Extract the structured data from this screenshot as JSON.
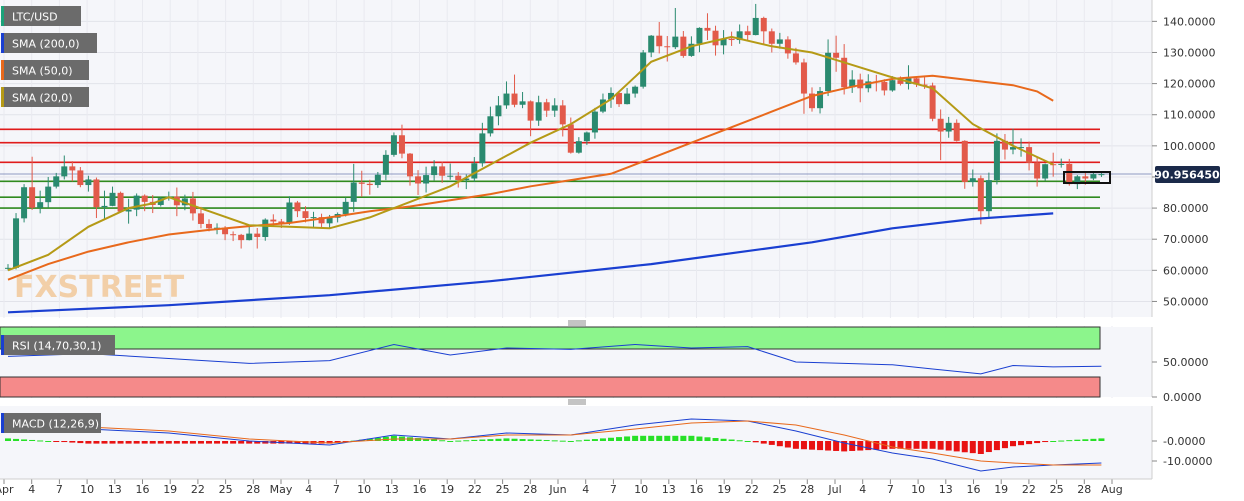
{
  "chart_data": {
    "type": "candlestick",
    "symbol": "LTC/USD",
    "legend": [
      "SMA (200,0)",
      "SMA (50,0)",
      "SMA (20,0)"
    ],
    "last_price": "90.956450",
    "watermark": "FXSTREET",
    "price_axis": {
      "ticks": [
        "140.0000",
        "130.0000",
        "120.0000",
        "110.0000",
        "100.0000",
        "90.0000",
        "80.0000",
        "70.0000",
        "60.0000",
        "50.0000"
      ],
      "range": [
        45,
        145
      ]
    },
    "x_axis": {
      "labels": [
        "Apr",
        "4",
        "7",
        "10",
        "13",
        "16",
        "19",
        "22",
        "25",
        "28",
        "May",
        "4",
        "7",
        "10",
        "13",
        "16",
        "19",
        "22",
        "25",
        "28",
        "Jun",
        "4",
        "7",
        "10",
        "13",
        "16",
        "19",
        "22",
        "25",
        "28",
        "Jul",
        "4",
        "7",
        "10",
        "13",
        "16",
        "19",
        "22",
        "25",
        "28",
        "Aug"
      ]
    },
    "resistance_levels": [
      105.3,
      101.0,
      94.7
    ],
    "support_levels": [
      88.6,
      83.5,
      80.0
    ],
    "sma200_points": [
      [
        0,
        46.5
      ],
      [
        20,
        48.8
      ],
      [
        40,
        52.0
      ],
      [
        60,
        56.5
      ],
      [
        80,
        62.0
      ],
      [
        100,
        69.0
      ],
      [
        110,
        73.5
      ],
      [
        120,
        76.5
      ],
      [
        130,
        78.3
      ]
    ],
    "sma50_points": [
      [
        0,
        57.0
      ],
      [
        5,
        62.0
      ],
      [
        10,
        66.0
      ],
      [
        15,
        69.0
      ],
      [
        20,
        71.5
      ],
      [
        25,
        73.0
      ],
      [
        30,
        74.2
      ],
      [
        35,
        75.2
      ],
      [
        40,
        77.0
      ],
      [
        45,
        79.0
      ],
      [
        50,
        80.5
      ],
      [
        55,
        82.5
      ],
      [
        60,
        84.5
      ],
      [
        65,
        87.0
      ],
      [
        70,
        89.0
      ],
      [
        75,
        91.0
      ],
      [
        80,
        96.0
      ],
      [
        85,
        101.0
      ],
      [
        90,
        106.0
      ],
      [
        95,
        111.0
      ],
      [
        100,
        116.0
      ],
      [
        105,
        119.0
      ],
      [
        110,
        121.5
      ],
      [
        115,
        122.5
      ],
      [
        120,
        121.0
      ],
      [
        125,
        119.5
      ],
      [
        128,
        117.5
      ],
      [
        130,
        114.5
      ]
    ],
    "sma20_points": [
      [
        0,
        60.0
      ],
      [
        5,
        65.0
      ],
      [
        10,
        74.0
      ],
      [
        15,
        80.0
      ],
      [
        18,
        81.5
      ],
      [
        20,
        83.5
      ],
      [
        25,
        79.0
      ],
      [
        30,
        74.5
      ],
      [
        35,
        74.0
      ],
      [
        40,
        73.5
      ],
      [
        45,
        77.0
      ],
      [
        50,
        82.0
      ],
      [
        55,
        87.0
      ],
      [
        60,
        94.0
      ],
      [
        65,
        101.0
      ],
      [
        70,
        107.0
      ],
      [
        75,
        115.0
      ],
      [
        80,
        127.0
      ],
      [
        85,
        132.0
      ],
      [
        90,
        135.0
      ],
      [
        95,
        132.0
      ],
      [
        100,
        130.0
      ],
      [
        105,
        126.0
      ],
      [
        110,
        122.0
      ],
      [
        115,
        118.5
      ],
      [
        120,
        107.0
      ],
      [
        125,
        100.0
      ],
      [
        130,
        94.0
      ]
    ],
    "candles": [
      [
        0,
        60.8,
        60.8,
        60.0,
        62.0
      ],
      [
        1,
        60.8,
        76.7,
        60.3,
        78.4
      ],
      [
        2,
        76.7,
        86.7,
        75.4,
        87.7
      ],
      [
        3,
        86.7,
        80.1,
        79.4,
        96.5
      ],
      [
        4,
        80.1,
        81.9,
        78.3,
        85.6
      ],
      [
        5,
        81.9,
        86.9,
        80.2,
        90.0
      ],
      [
        6,
        86.9,
        90.2,
        86.3,
        91.3
      ],
      [
        7,
        90.2,
        93.4,
        89.2,
        96.9
      ],
      [
        8,
        93.4,
        92.1,
        88.6,
        95.1
      ],
      [
        9,
        92.1,
        87.4,
        86.7,
        93.2
      ],
      [
        10,
        87.4,
        89.2,
        85.3,
        90.4
      ],
      [
        11,
        89.2,
        80.3,
        76.8,
        89.8
      ],
      [
        12,
        80.3,
        80.7,
        76.2,
        85.6
      ],
      [
        13,
        80.7,
        84.9,
        80.6,
        86.9
      ],
      [
        14,
        84.9,
        78.9,
        78.6,
        85.3
      ],
      [
        15,
        78.9,
        79.5,
        75.0,
        83.0
      ],
      [
        16,
        79.5,
        84.0,
        77.4,
        84.7
      ],
      [
        17,
        84.0,
        82.0,
        79.0,
        84.4
      ],
      [
        18,
        82.0,
        81.0,
        78.4,
        84.2
      ],
      [
        19,
        81.0,
        83.2,
        80.5,
        83.6
      ],
      [
        20,
        83.2,
        83.7,
        82.4,
        85.3
      ],
      [
        21,
        83.7,
        80.9,
        77.4,
        86.6
      ],
      [
        22,
        80.9,
        83.1,
        79.3,
        84.3
      ],
      [
        23,
        83.1,
        78.3,
        76.0,
        85.2
      ],
      [
        24,
        78.3,
        74.9,
        73.5,
        80.4
      ],
      [
        25,
        74.9,
        73.5,
        72.5,
        76.4
      ],
      [
        26,
        73.5,
        73.7,
        71.6,
        75.1
      ],
      [
        27,
        73.7,
        71.6,
        69.7,
        74.2
      ],
      [
        28,
        71.6,
        71.4,
        69.4,
        72.5
      ],
      [
        29,
        71.4,
        69.7,
        67.0,
        71.7
      ],
      [
        30,
        69.7,
        71.8,
        69.6,
        74.2
      ],
      [
        31,
        71.8,
        70.7,
        67.0,
        73.6
      ],
      [
        32,
        70.7,
        76.3,
        69.5,
        76.7
      ],
      [
        33,
        76.3,
        75.7,
        74.2,
        78.0
      ],
      [
        34,
        75.7,
        75.2,
        73.6,
        76.5
      ],
      [
        35,
        75.2,
        81.8,
        74.6,
        83.8
      ],
      [
        36,
        81.8,
        79.0,
        77.1,
        82.3
      ],
      [
        37,
        79.0,
        76.8,
        75.4,
        80.6
      ],
      [
        38,
        76.8,
        77.1,
        73.8,
        78.8
      ],
      [
        39,
        77.1,
        75.1,
        73.9,
        78.2
      ],
      [
        40,
        75.1,
        76.9,
        73.5,
        77.8
      ],
      [
        41,
        76.9,
        78.1,
        75.4,
        78.6
      ],
      [
        42,
        78.1,
        82.0,
        77.3,
        83.4
      ],
      [
        43,
        82.0,
        88.2,
        78.8,
        94.2
      ],
      [
        44,
        88.2,
        87.8,
        83.6,
        92.0
      ],
      [
        45,
        87.8,
        87.4,
        84.3,
        89.1
      ],
      [
        46,
        87.4,
        90.7,
        86.5,
        91.6
      ],
      [
        47,
        90.7,
        97.1,
        89.0,
        98.6
      ],
      [
        48,
        97.1,
        103.4,
        96.5,
        104.3
      ],
      [
        49,
        103.4,
        97.5,
        96.0,
        106.8
      ],
      [
        50,
        97.5,
        90.2,
        87.2,
        97.7
      ],
      [
        51,
        90.2,
        87.9,
        84.2,
        92.2
      ],
      [
        52,
        87.9,
        90.6,
        85.0,
        93.3
      ],
      [
        53,
        90.6,
        93.4,
        88.9,
        95.4
      ],
      [
        54,
        93.4,
        90.4,
        88.1,
        94.9
      ],
      [
        55,
        90.4,
        90.4,
        89.1,
        94.3
      ],
      [
        56,
        90.4,
        89.0,
        86.6,
        91.6
      ],
      [
        57,
        89.0,
        89.5,
        86.1,
        90.8
      ],
      [
        58,
        89.5,
        94.4,
        88.5,
        96.4
      ],
      [
        59,
        94.4,
        104.0,
        93.3,
        107.4
      ],
      [
        60,
        104.0,
        109.5,
        103.0,
        112.6
      ],
      [
        61,
        109.5,
        113.0,
        106.6,
        116.0
      ],
      [
        62,
        113.0,
        116.8,
        111.9,
        120.7
      ],
      [
        63,
        116.8,
        113.2,
        112.4,
        122.9
      ],
      [
        64,
        113.2,
        114.3,
        112.1,
        117.3
      ],
      [
        65,
        114.3,
        108.1,
        103.1,
        114.6
      ],
      [
        66,
        108.1,
        114.0,
        106.4,
        116.1
      ],
      [
        67,
        114.0,
        111.3,
        109.3,
        115.1
      ],
      [
        68,
        111.3,
        113.0,
        109.3,
        115.3
      ],
      [
        69,
        113.0,
        106.9,
        103.0,
        114.7
      ],
      [
        70,
        106.9,
        97.8,
        97.5,
        109.1
      ],
      [
        71,
        97.8,
        101.5,
        97.5,
        102.8
      ],
      [
        72,
        101.5,
        104.3,
        100.3,
        104.6
      ],
      [
        73,
        104.3,
        111.0,
        102.3,
        112.2
      ],
      [
        74,
        111.0,
        114.9,
        110.5,
        116.8
      ],
      [
        75,
        114.9,
        117.0,
        112.2,
        118.8
      ],
      [
        76,
        117.0,
        113.4,
        112.5,
        117.7
      ],
      [
        77,
        113.4,
        116.8,
        113.3,
        118.6
      ],
      [
        78,
        116.8,
        119.0,
        115.5,
        119.4
      ],
      [
        79,
        119.0,
        130.0,
        118.4,
        130.8
      ],
      [
        80,
        130.0,
        135.4,
        128.5,
        135.6
      ],
      [
        81,
        135.4,
        132.0,
        129.7,
        139.8
      ],
      [
        82,
        132.0,
        131.7,
        127.1,
        135.3
      ],
      [
        83,
        131.7,
        135.1,
        131.1,
        144.3
      ],
      [
        84,
        135.1,
        128.9,
        128.3,
        136.9
      ],
      [
        85,
        128.9,
        132.8,
        128.6,
        135.2
      ],
      [
        86,
        132.8,
        137.9,
        130.1,
        138.1
      ],
      [
        87,
        137.9,
        137.0,
        134.0,
        142.6
      ],
      [
        88,
        137.0,
        132.3,
        129.0,
        138.6
      ],
      [
        89,
        132.3,
        134.4,
        129.4,
        137.2
      ],
      [
        90,
        134.4,
        134.0,
        132.1,
        136.7
      ],
      [
        91,
        134.0,
        136.8,
        132.8,
        139.0
      ],
      [
        92,
        136.8,
        135.6,
        134.0,
        138.6
      ],
      [
        93,
        135.6,
        141.1,
        135.5,
        145.6
      ],
      [
        94,
        141.1,
        136.8,
        132.4,
        141.5
      ],
      [
        95,
        136.8,
        132.8,
        130.0,
        137.7
      ],
      [
        96,
        132.8,
        134.2,
        131.2,
        136.3
      ],
      [
        97,
        134.2,
        129.7,
        128.0,
        135.2
      ],
      [
        98,
        129.7,
        126.8,
        126.1,
        131.5
      ],
      [
        99,
        126.8,
        116.8,
        110.3,
        128.0
      ],
      [
        100,
        116.8,
        112.1,
        111.0,
        118.8
      ],
      [
        101,
        112.1,
        117.6,
        110.4,
        118.9
      ],
      [
        102,
        117.6,
        129.9,
        116.0,
        134.2
      ],
      [
        103,
        129.9,
        128.3,
        123.8,
        135.4
      ],
      [
        104,
        128.3,
        118.8,
        116.5,
        132.7
      ],
      [
        105,
        118.8,
        121.3,
        117.0,
        124.3
      ],
      [
        106,
        121.3,
        118.5,
        114.0,
        123.2
      ],
      [
        107,
        118.5,
        120.7,
        117.2,
        123.0
      ],
      [
        108,
        120.7,
        120.5,
        117.5,
        122.8
      ],
      [
        109,
        120.5,
        117.8,
        116.2,
        121.4
      ],
      [
        110,
        117.8,
        121.1,
        117.4,
        122.4
      ],
      [
        111,
        121.1,
        119.9,
        119.4,
        122.3
      ],
      [
        112,
        119.9,
        121.7,
        118.1,
        125.9
      ],
      [
        113,
        121.7,
        119.7,
        118.9,
        122.3
      ],
      [
        114,
        119.7,
        119.4,
        118.3,
        122.1
      ],
      [
        115,
        119.4,
        108.7,
        107.9,
        120.3
      ],
      [
        116,
        108.7,
        104.6,
        95.4,
        111.7
      ],
      [
        117,
        104.6,
        107.4,
        102.6,
        109.3
      ],
      [
        118,
        107.4,
        101.6,
        101.4,
        108.5
      ],
      [
        119,
        101.6,
        88.4,
        86.2,
        101.8
      ],
      [
        120,
        88.4,
        89.6,
        86.9,
        92.4
      ],
      [
        121,
        89.6,
        79.0,
        74.8,
        90.5
      ],
      [
        122,
        79.0,
        89.0,
        76.7,
        91.4
      ],
      [
        123,
        89.0,
        101.6,
        87.6,
        104.0
      ],
      [
        124,
        101.6,
        98.8,
        95.6,
        103.8
      ],
      [
        125,
        98.8,
        99.6,
        97.3,
        105.5
      ],
      [
        126,
        99.6,
        99.6,
        96.5,
        102.4
      ],
      [
        127,
        99.6,
        94.6,
        92.1,
        101.4
      ],
      [
        128,
        94.6,
        89.5,
        86.9,
        96.5
      ],
      [
        129,
        89.5,
        94.1,
        88.8,
        94.3
      ],
      [
        130,
        94.1,
        93.9,
        90.1,
        97.8
      ],
      [
        131,
        93.9,
        94.2,
        93.0,
        95.9
      ],
      [
        132,
        94.2,
        87.7,
        87.2,
        95.8
      ],
      [
        133,
        87.7,
        90.2,
        86.1,
        90.6
      ],
      [
        134,
        90.2,
        89.5,
        87.5,
        91.9
      ],
      [
        135,
        89.5,
        90.9,
        89.0,
        91.5
      ],
      [
        136,
        90.9,
        90.9,
        90.0,
        91.6
      ]
    ],
    "rsi": {
      "label": "RSI (14,70,30,1)",
      "ticks": [
        "50.0000",
        "0.0000"
      ],
      "range": [
        0,
        100
      ],
      "overbought": 70,
      "oversold": 30,
      "points": [
        [
          0,
          58
        ],
        [
          10,
          62
        ],
        [
          20,
          55
        ],
        [
          30,
          48
        ],
        [
          40,
          52
        ],
        [
          48,
          75
        ],
        [
          55,
          60
        ],
        [
          62,
          70
        ],
        [
          70,
          68
        ],
        [
          78,
          75
        ],
        [
          85,
          70
        ],
        [
          92,
          72
        ],
        [
          98,
          50
        ],
        [
          104,
          48
        ],
        [
          110,
          46
        ],
        [
          115,
          40
        ],
        [
          121,
          33
        ],
        [
          125,
          45
        ],
        [
          130,
          43
        ],
        [
          136,
          44
        ]
      ]
    },
    "macd": {
      "label": "MACD (12,26,9)",
      "ticks": [
        "-0.0000",
        "-10.0000"
      ],
      "range": [
        -16,
        12
      ],
      "macd_points": [
        [
          0,
          8
        ],
        [
          10,
          6
        ],
        [
          20,
          4
        ],
        [
          30,
          0
        ],
        [
          40,
          -2
        ],
        [
          48,
          3
        ],
        [
          55,
          1
        ],
        [
          62,
          4
        ],
        [
          70,
          3
        ],
        [
          78,
          8
        ],
        [
          85,
          11
        ],
        [
          92,
          10
        ],
        [
          98,
          5
        ],
        [
          104,
          -1
        ],
        [
          110,
          -6
        ],
        [
          115,
          -9
        ],
        [
          121,
          -15
        ],
        [
          125,
          -13
        ],
        [
          130,
          -12
        ],
        [
          136,
          -11
        ]
      ],
      "signal_points": [
        [
          0,
          7
        ],
        [
          10,
          7
        ],
        [
          20,
          5
        ],
        [
          30,
          1
        ],
        [
          40,
          -1
        ],
        [
          48,
          1
        ],
        [
          55,
          1
        ],
        [
          62,
          3
        ],
        [
          70,
          3
        ],
        [
          78,
          6
        ],
        [
          85,
          9
        ],
        [
          92,
          10
        ],
        [
          98,
          8
        ],
        [
          104,
          3
        ],
        [
          110,
          -3
        ],
        [
          115,
          -6
        ],
        [
          121,
          -10
        ],
        [
          125,
          -11
        ],
        [
          130,
          -12
        ],
        [
          136,
          -12
        ]
      ]
    }
  }
}
